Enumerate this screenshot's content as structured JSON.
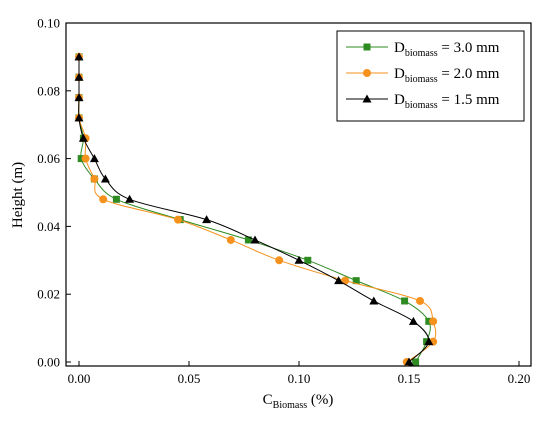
{
  "chart_data": {
    "type": "line",
    "xlabel_main": "C",
    "xlabel_sub": "Biomass",
    "xlabel_unit": " (%)",
    "ylabel": "Height (m)",
    "xlim": [
      0,
      0.2
    ],
    "ylim": [
      0,
      0.1
    ],
    "xticks": [
      "0.00",
      "0.05",
      "0.10",
      "0.15",
      "0.20"
    ],
    "yticks": [
      "0.00",
      "0.02",
      "0.04",
      "0.06",
      "0.08",
      "0.10"
    ],
    "xtick_values": [
      0,
      0.05,
      0.1,
      0.15,
      0.2
    ],
    "ytick_values": [
      0,
      0.02,
      0.04,
      0.06,
      0.08,
      0.1
    ],
    "legend_position": "top-right",
    "grid": false,
    "series": [
      {
        "name": "D_biomass = 3.0 mm",
        "legend_main": "D",
        "legend_sub": "biomass",
        "legend_value": " = 3.0 mm",
        "color": "#2e8b22",
        "marker": "square",
        "points": [
          [
            0.153,
            0.0
          ],
          [
            0.158,
            0.006
          ],
          [
            0.159,
            0.012
          ],
          [
            0.148,
            0.018
          ],
          [
            0.126,
            0.024
          ],
          [
            0.104,
            0.03
          ],
          [
            0.077,
            0.036
          ],
          [
            0.046,
            0.042
          ],
          [
            0.017,
            0.048
          ],
          [
            0.007,
            0.054
          ],
          [
            0.001,
            0.06
          ],
          [
            0.002,
            0.066
          ],
          [
            0.0,
            0.072
          ],
          [
            0.0,
            0.078
          ],
          [
            0.0,
            0.084
          ],
          [
            0.0,
            0.09
          ]
        ]
      },
      {
        "name": "D_biomass = 2.0 mm",
        "legend_main": "D",
        "legend_sub": "biomass",
        "legend_value": " = 2.0 mm",
        "color": "#f5921e",
        "marker": "circle",
        "points": [
          [
            0.149,
            0.0
          ],
          [
            0.161,
            0.006
          ],
          [
            0.161,
            0.012
          ],
          [
            0.155,
            0.018
          ],
          [
            0.121,
            0.024
          ],
          [
            0.091,
            0.03
          ],
          [
            0.069,
            0.036
          ],
          [
            0.045,
            0.042
          ],
          [
            0.011,
            0.048
          ],
          [
            0.007,
            0.054
          ],
          [
            0.003,
            0.06
          ],
          [
            0.003,
            0.066
          ],
          [
            0.0,
            0.072
          ],
          [
            0.0,
            0.078
          ],
          [
            0.0,
            0.084
          ],
          [
            0.0,
            0.09
          ]
        ]
      },
      {
        "name": "D_biomass = 1.5 mm",
        "legend_main": "D",
        "legend_sub": "biomass",
        "legend_value": " = 1.5 mm",
        "color": "#000000",
        "marker": "triangle",
        "points": [
          [
            0.15,
            0.0
          ],
          [
            0.159,
            0.006
          ],
          [
            0.152,
            0.012
          ],
          [
            0.134,
            0.018
          ],
          [
            0.118,
            0.024
          ],
          [
            0.1,
            0.03
          ],
          [
            0.08,
            0.036
          ],
          [
            0.058,
            0.042
          ],
          [
            0.023,
            0.048
          ],
          [
            0.012,
            0.054
          ],
          [
            0.007,
            0.06
          ],
          [
            0.002,
            0.066
          ],
          [
            0.0,
            0.072
          ],
          [
            0.0,
            0.078
          ],
          [
            0.0,
            0.084
          ],
          [
            0.0,
            0.09
          ]
        ]
      }
    ]
  }
}
